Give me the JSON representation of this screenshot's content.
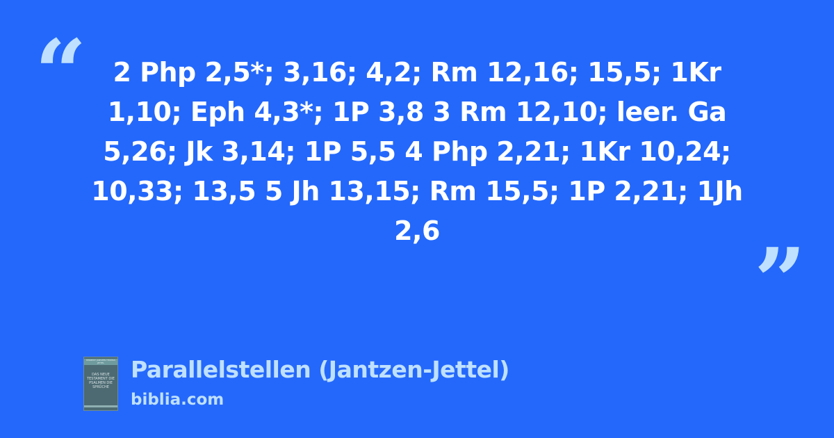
{
  "quote": {
    "open_mark": "“",
    "close_mark": "”",
    "text": "2 Php 2,5*; 3,16; 4,2; Rm 12,16; 15,5; 1Kr 1,10; Eph 4,3*; 1P 3,8 3 Rm 12,10; leer. Ga 5,26; Jk 3,14; 1P 5,5 4 Php 2,21; 1Kr 10,24; 10,33; 13,5 5 Jh 13,15; Rm 15,5; 1P 2,21; 1Jh 2,6"
  },
  "source": {
    "title": "Parallelstellen (Jantzen-Jettel)",
    "site": "biblia.com",
    "cover": {
      "authors": "HERBERT JANTZEN THOMAS JETTEL",
      "title": "DAS NEUE TESTAMENT DIE PSALMEN DIE SPRÜCHE"
    }
  },
  "colors": {
    "background": "#2468fb",
    "accent": "#bfe0ff",
    "text": "#ffffff"
  }
}
